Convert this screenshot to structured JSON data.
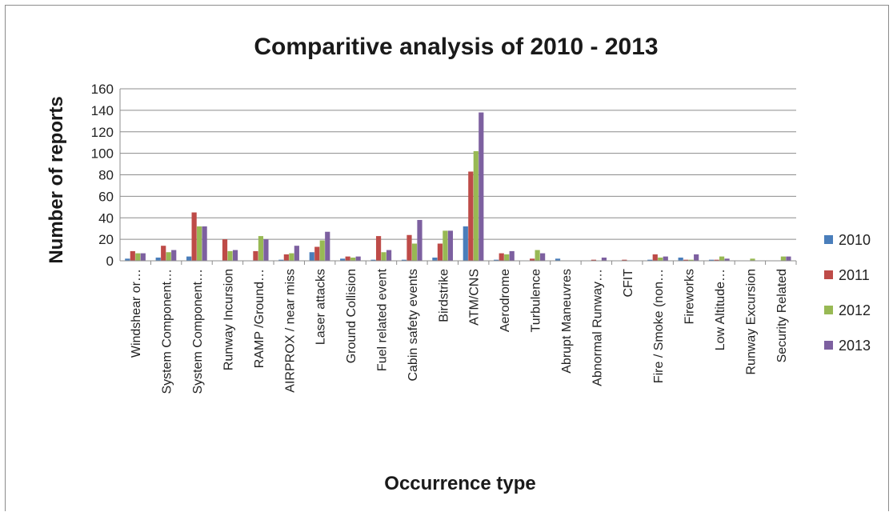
{
  "chart_data": {
    "type": "bar",
    "title": "Comparitive analysis of 2010 - 2013",
    "xlabel": "Occurrence type",
    "ylabel": "Number of reports",
    "ylim": [
      0,
      160
    ],
    "yticks": [
      0,
      20,
      40,
      60,
      80,
      100,
      120,
      140,
      160
    ],
    "grid": true,
    "legend_position": "right",
    "categories": [
      "Windshear or…",
      "System Component…",
      "System Component…",
      "Runway Incursion",
      "RAMP /Ground…",
      "AIRPROX / near miss",
      "Laser attacks",
      "Ground Collision",
      "Fuel related event",
      "Cabin safety events",
      "Birdstrike",
      "ATM/CNS",
      "Aerodrome",
      "Turbulence",
      "Abrupt Maneuvres",
      "Abnormal Runway…",
      "CFIT",
      "Fire / Smoke (non…",
      "Fireworks",
      "Low Altitude…",
      "Runway Excursion",
      "Security Related"
    ],
    "series": [
      {
        "name": "2010",
        "color": "#4a7ebb",
        "values": [
          2,
          3,
          4,
          0,
          0,
          1,
          8,
          2,
          1,
          1,
          3,
          32,
          1,
          0,
          2,
          0,
          0,
          1,
          3,
          1,
          0,
          0
        ]
      },
      {
        "name": "2011",
        "color": "#be4b48",
        "values": [
          9,
          14,
          45,
          20,
          9,
          6,
          13,
          4,
          23,
          24,
          16,
          83,
          7,
          2,
          0,
          1,
          1,
          6,
          1,
          1,
          0,
          0
        ]
      },
      {
        "name": "2012",
        "color": "#98b954",
        "values": [
          7,
          8,
          32,
          9,
          23,
          7,
          19,
          3,
          8,
          16,
          28,
          102,
          6,
          10,
          0,
          0,
          0,
          3,
          1,
          4,
          2,
          4
        ]
      },
      {
        "name": "2013",
        "color": "#7d60a0",
        "values": [
          7,
          10,
          32,
          10,
          20,
          14,
          27,
          4,
          10,
          38,
          28,
          138,
          9,
          7,
          0,
          3,
          0,
          4,
          6,
          2,
          0,
          4
        ]
      }
    ]
  }
}
